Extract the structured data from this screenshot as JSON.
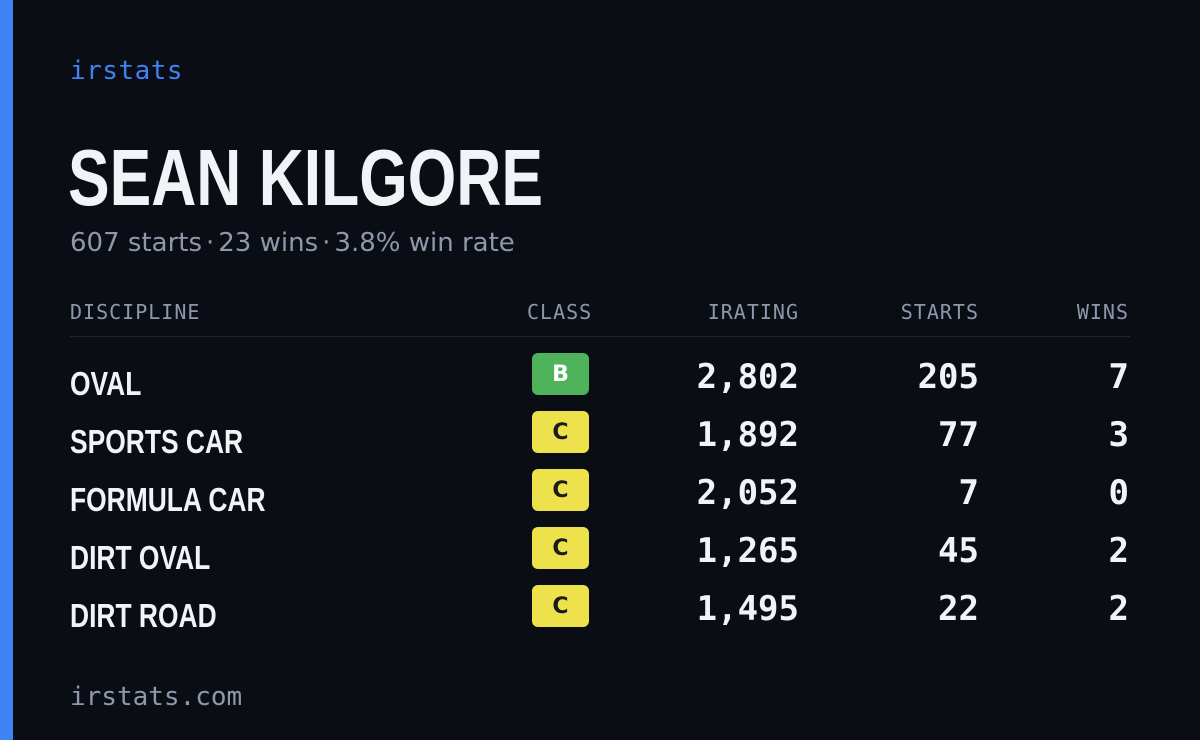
{
  "brand": "irstats",
  "driver": {
    "name": "SEAN KILGORE",
    "starts": "607 starts",
    "wins": "23 wins",
    "win_rate": "3.8% win rate",
    "separator": "·"
  },
  "table": {
    "headers": {
      "discipline": "DISCIPLINE",
      "class": "CLASS",
      "irating": "IRATING",
      "starts": "STARTS",
      "wins": "WINS"
    },
    "rows": [
      {
        "discipline": "OVAL",
        "class": "B",
        "class_color": "#4fb35c",
        "class_text_color": "#ffffff",
        "irating": "2,802",
        "starts": "205",
        "wins": "7"
      },
      {
        "discipline": "SPORTS CAR",
        "class": "C",
        "class_color": "#ede24c",
        "class_text_color": "#1b1b1b",
        "irating": "1,892",
        "starts": "77",
        "wins": "3"
      },
      {
        "discipline": "FORMULA CAR",
        "class": "C",
        "class_color": "#ede24c",
        "class_text_color": "#1b1b1b",
        "irating": "2,052",
        "starts": "7",
        "wins": "0"
      },
      {
        "discipline": "DIRT OVAL",
        "class": "C",
        "class_color": "#ede24c",
        "class_text_color": "#1b1b1b",
        "irating": "1,265",
        "starts": "45",
        "wins": "2"
      },
      {
        "discipline": "DIRT ROAD",
        "class": "C",
        "class_color": "#ede24c",
        "class_text_color": "#1b1b1b",
        "irating": "1,495",
        "starts": "22",
        "wins": "2"
      }
    ]
  },
  "footer": "irstats.com",
  "colors": {
    "background": "#0b0d14",
    "accent": "#3f82f3",
    "text": "#f2f3f7",
    "muted": "#8e98ab"
  }
}
